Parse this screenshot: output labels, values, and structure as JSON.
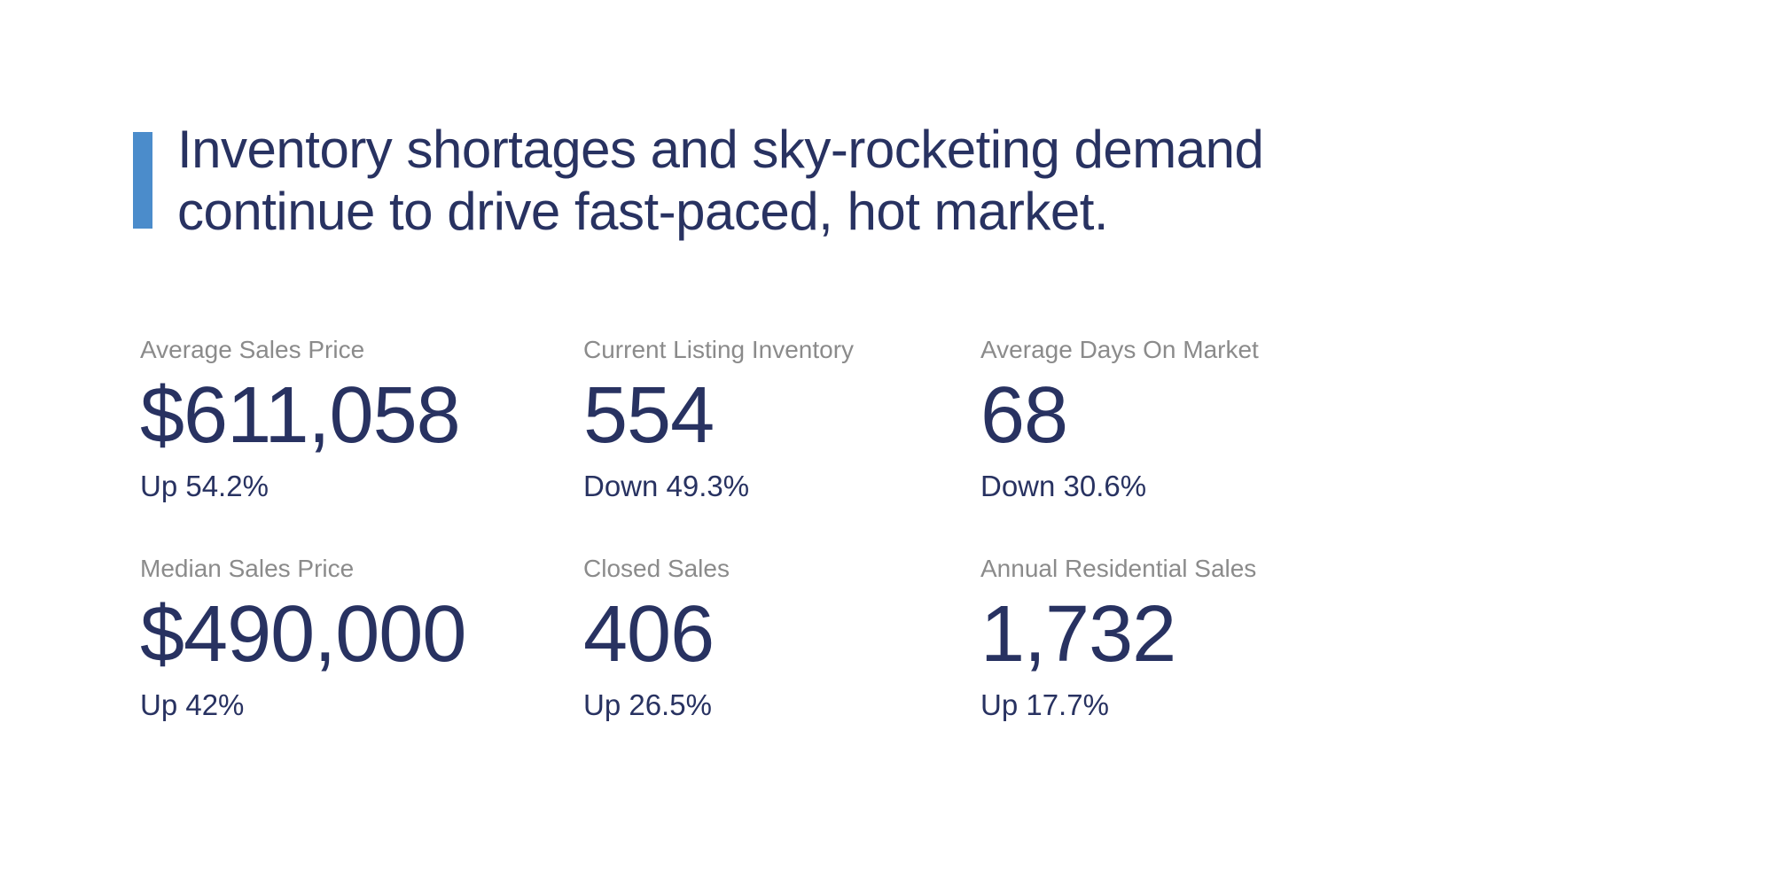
{
  "headline": {
    "line1": "Inventory shortages and sky-rocketing demand",
    "line2": "continue to drive fast-paced, hot market."
  },
  "stats": [
    {
      "label": "Average Sales Price",
      "value": "$611,058",
      "change": "Up 54.2%"
    },
    {
      "label": "Current Listing Inventory",
      "value": "554",
      "change": "Down 49.3%"
    },
    {
      "label": "Average Days On Market",
      "value": "68",
      "change": "Down 30.6%"
    },
    {
      "label": "Median Sales Price",
      "value": "$490,000",
      "change": "Up 42%"
    },
    {
      "label": "Closed Sales",
      "value": "406",
      "change": "Up 26.5%"
    },
    {
      "label": "Annual Residential Sales",
      "value": "1,732",
      "change": "Up 17.7%"
    }
  ],
  "colors": {
    "accent_blue": "#4B8CCB",
    "navy_text": "#283261",
    "label_gray": "#8B8B8B",
    "page_bg": "#FFFFFF"
  }
}
